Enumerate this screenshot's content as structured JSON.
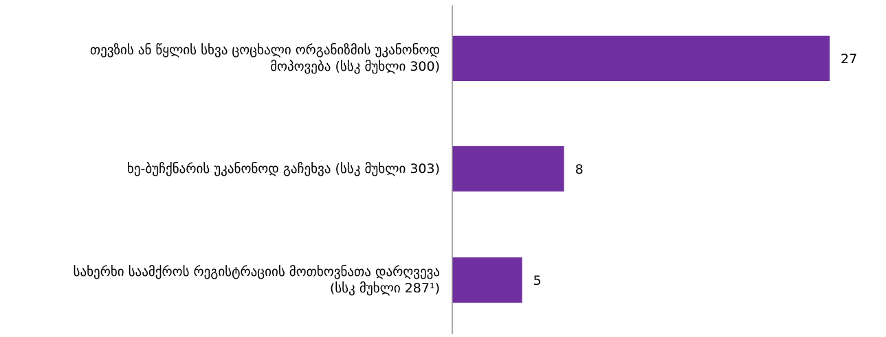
{
  "chart_data": {
    "type": "bar",
    "orientation": "horizontal",
    "categories": [
      "თევზის ან წყლის სხვა ცოცხალი ორგანიზმის უკანონოდ\nმოპოვება (სსკ მუხლი 300)",
      "ხე-ბუჩქნარის უკანონოდ გაჩეხვა (სსკ მუხლი 303)",
      "სახერხი საამქროს რეგისტრაციის მოთხოვნათა დარღვევა\n(სსკ მუხლი 287¹)"
    ],
    "values": [
      27,
      8,
      5
    ],
    "data_labels": [
      "27",
      "8",
      "5"
    ],
    "xlim": [
      0,
      30
    ],
    "bar_color": "#7030a0",
    "axis_color": "#8c8c8c",
    "grid": false,
    "legend": "none"
  }
}
